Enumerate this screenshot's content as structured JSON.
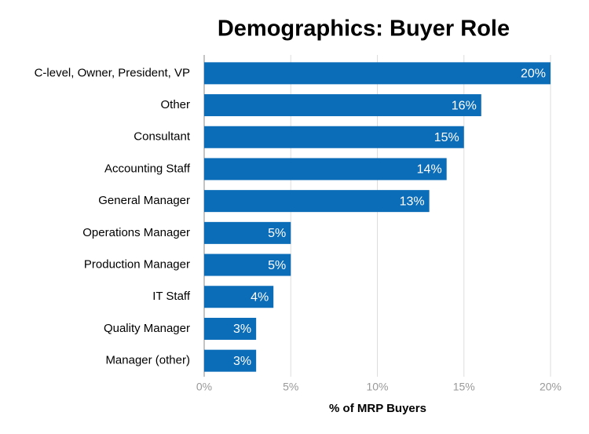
{
  "chart_data": {
    "type": "hbar",
    "title": "Demographics: Buyer Role",
    "categories": [
      "C-level, Owner, President, VP",
      "Other",
      "Consultant",
      "Accounting Staff",
      "General Manager",
      "Operations Manager",
      "Production Manager",
      "IT Staff",
      "Quality Manager",
      "Manager (other)"
    ],
    "values": [
      20,
      16,
      15,
      14,
      13,
      5,
      5,
      4,
      3,
      3
    ],
    "value_labels": [
      "20%",
      "16%",
      "15%",
      "14%",
      "13%",
      "5%",
      "5%",
      "4%",
      "3%",
      "3%"
    ],
    "color": "#0b6cb8",
    "x_label": "% of MRP Buyers",
    "xlim": [
      0,
      20
    ],
    "xticks": [
      {
        "value": 0,
        "label": "0%"
      },
      {
        "value": 5,
        "label": "5%"
      },
      {
        "value": 10,
        "label": "10%"
      },
      {
        "value": 15,
        "label": "15%"
      },
      {
        "value": 20,
        "label": "20%"
      }
    ],
    "grid": true
  }
}
